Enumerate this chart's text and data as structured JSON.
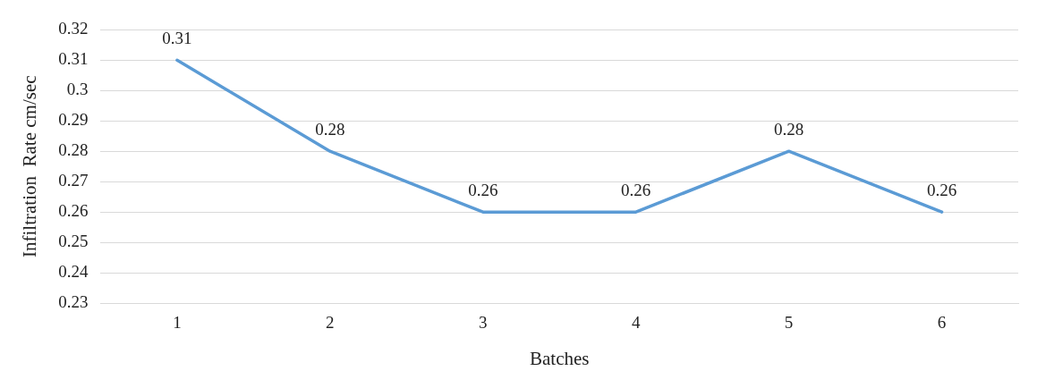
{
  "chart_data": {
    "type": "line",
    "xlabel": "Batches",
    "ylabel": "Infiltration  Rate cm/sec",
    "categories": [
      "1",
      "2",
      "3",
      "4",
      "5",
      "6"
    ],
    "series": [
      {
        "color": "#5b9bd5",
        "values": [
          0.31,
          0.28,
          0.26,
          0.26,
          0.28,
          0.26
        ]
      }
    ],
    "ylim": [
      0.23,
      0.32
    ],
    "yticks": [
      0.23,
      0.24,
      0.25,
      0.26,
      0.27,
      0.28,
      0.29,
      0.3,
      0.31,
      0.32
    ],
    "grid": "y",
    "data_labels": true,
    "legend": false,
    "marker": "none",
    "line_style": "solid"
  }
}
